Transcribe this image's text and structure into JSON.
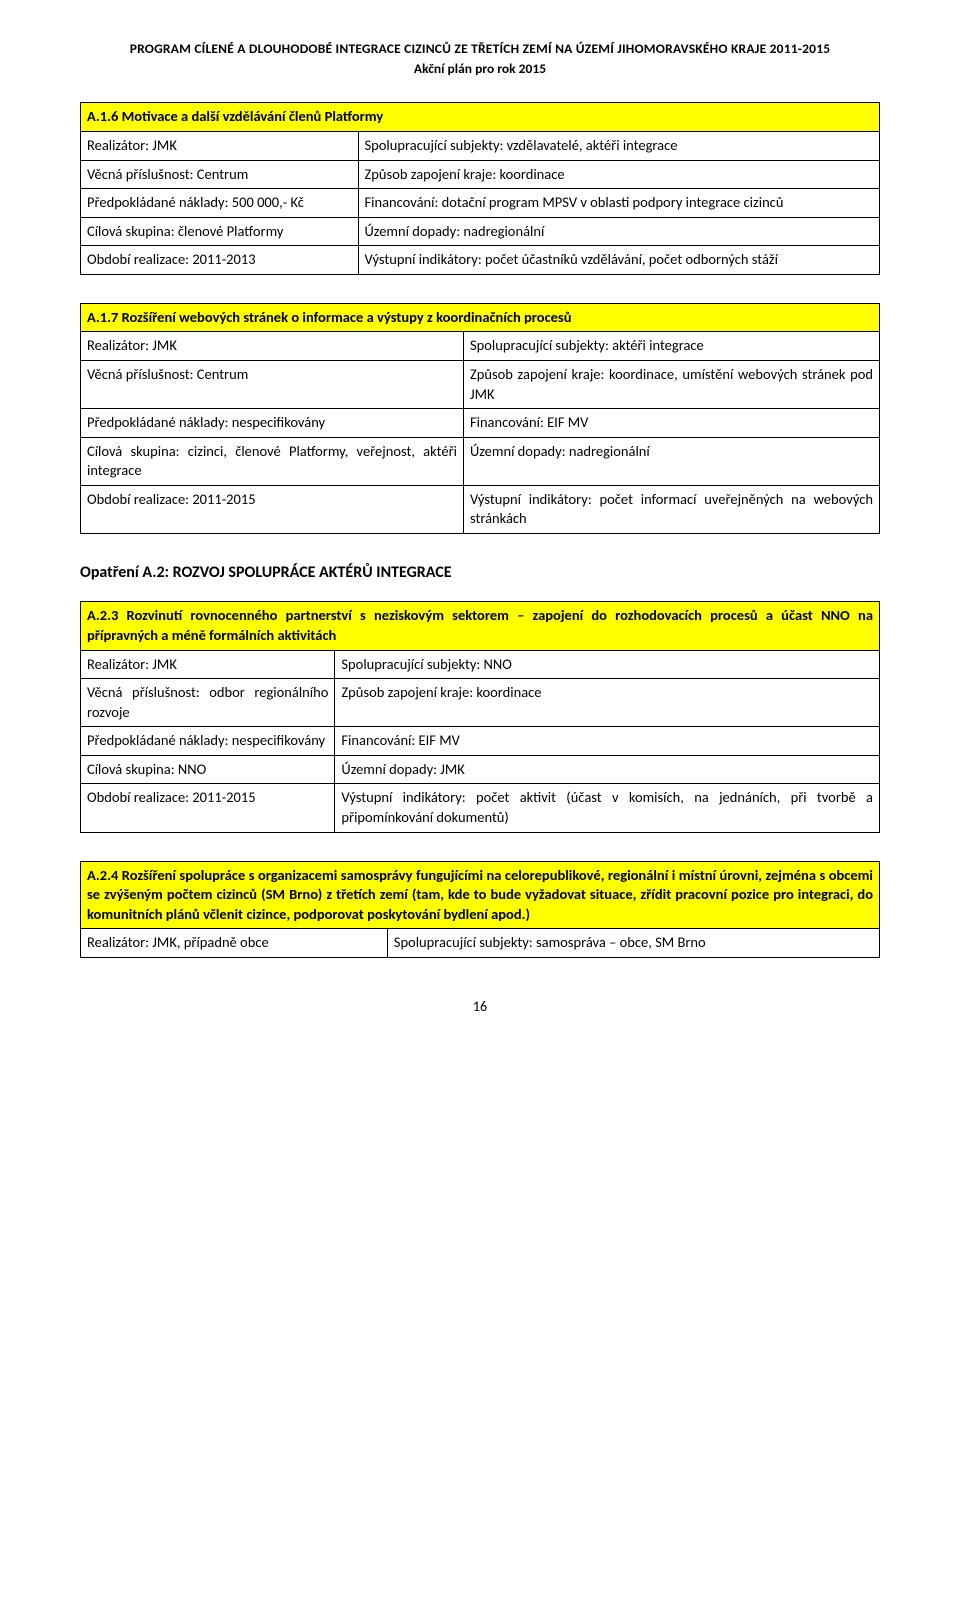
{
  "doc": {
    "title": "PROGRAM CÍLENÉ A DLOUHODOBÉ INTEGRACE CIZINCŮ ZE TŘETÍCH ZEMÍ NA ÚZEMÍ JIHOMORAVSKÉHO KRAJE 2011-2015",
    "subtitle": "Akční plán pro rok 2015",
    "page_number": "16"
  },
  "colors": {
    "highlight_bg": "#ffff00",
    "border": "#000000",
    "page_bg": "#ffffff",
    "text": "#000000"
  },
  "typography": {
    "body_font": "Calibri, Arial, sans-serif",
    "body_size_pt": 11,
    "heading_size_pt": 12,
    "header_title_size_pt": 10
  },
  "blocks": {
    "a16": {
      "header": "A.1.6 Motivace a další vzdělávání členů Platformy",
      "rows": [
        [
          "Realizátor: JMK",
          "Spolupracující subjekty: vzdělavatelé, aktéři integrace"
        ],
        [
          "Věcná příslušnost: Centrum",
          "Způsob zapojení kraje: koordinace"
        ],
        [
          "Předpokládané náklady: 500 000,- Kč",
          "Financování: dotační program MPSV v oblasti podpory integrace cizinců"
        ],
        [
          "Cílová skupina: členové Platformy",
          "Územní dopady: nadregionální"
        ],
        [
          "Období realizace: 2011-2013",
          "Výstupní indikátory: počet účastníků vzdělávání, počet odborných stáží"
        ]
      ]
    },
    "a17": {
      "header": "A.1.7 Rozšíření webových stránek o informace a výstupy z koordinačních procesů",
      "rows": [
        [
          "Realizátor: JMK",
          "Spolupracující subjekty: aktéři integrace"
        ],
        [
          "Věcná příslušnost: Centrum",
          "Způsob zapojení kraje: koordinace, umístění webových stránek pod JMK"
        ],
        [
          "Předpokládané náklady: nespecifikovány",
          "Financování: EIF MV"
        ],
        [
          "Cílová skupina: cizinci, členové Platformy, veřejnost, aktéři integrace",
          "Územní dopady: nadregionální"
        ],
        [
          "Období realizace: 2011-2015",
          "Výstupní indikátory: počet informací uveřejněných na webových stránkách"
        ]
      ]
    },
    "section_a2_heading": "Opatření A.2:  ROZVOJ SPOLUPRÁCE AKTÉRŮ INTEGRACE",
    "a23": {
      "header": "A.2.3 Rozvinutí rovnocenného partnerství s neziskovým sektorem – zapojení do rozhodovacích procesů a účast NNO na přípravných a méně formálních aktivitách",
      "rows": [
        [
          "Realizátor: JMK",
          "Spolupracující subjekty: NNO"
        ],
        [
          "Věcná příslušnost: odbor regionálního rozvoje",
          "Způsob zapojení kraje: koordinace"
        ],
        [
          "Předpokládané náklady: nespecifikovány",
          "Financování: EIF MV"
        ],
        [
          "Cílová skupina: NNO",
          "Územní dopady: JMK"
        ],
        [
          "Období realizace: 2011-2015",
          "Výstupní indikátory: počet aktivit (účast v komisích, na jednáních, při tvorbě a připomínkování dokumentů)"
        ]
      ]
    },
    "a24": {
      "header": "A.2.4 Rozšíření spolupráce s organizacemi samosprávy fungujícími na celorepublikové, regionální i místní úrovni, zejména s obcemi se zvýšeným počtem cizinců (SM Brno) z třetích zemí (tam, kde to bude vyžadovat situace, zřídit pracovní pozice pro integraci, do komunitních plánů včlenit cizince, podporovat poskytování bydlení apod.)",
      "rows": [
        [
          "Realizátor: JMK, případně obce",
          "Spolupracující subjekty: samospráva – obce, SM Brno"
        ]
      ]
    }
  }
}
